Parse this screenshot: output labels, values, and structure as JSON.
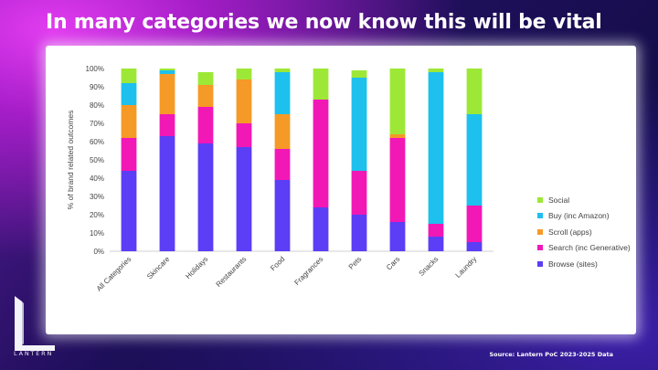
{
  "title": "In many categories we now know this will be vital",
  "source": "Source: Lantern PoC 2023-2025 Data",
  "logo": {
    "text": "LANTERN"
  },
  "colors": {
    "browse": "#5b3ef5",
    "search": "#f218b6",
    "scroll": "#f59a26",
    "buy": "#1ec0ee",
    "social": "#9de836"
  },
  "chart_data": {
    "type": "bar",
    "stacked": true,
    "ylabel": "% of brand related outcomes",
    "xlabel": "",
    "ylim": [
      0,
      100
    ],
    "y_ticks": [
      "0%",
      "10%",
      "20%",
      "30%",
      "40%",
      "50%",
      "60%",
      "70%",
      "80%",
      "90%",
      "100%"
    ],
    "legend_position": "right",
    "categories": [
      "All Categories",
      "Skincare",
      "Holidays",
      "Restaurants",
      "Food",
      "Fragrances",
      "Pets",
      "Cars",
      "Snacks",
      "Laundry"
    ],
    "series": [
      {
        "name": "Browse (sites)",
        "key": "browse",
        "values": [
          44,
          63,
          59,
          57,
          39,
          24,
          20,
          16,
          8,
          5
        ]
      },
      {
        "name": "Search (inc Generative)",
        "key": "search",
        "values": [
          18,
          12,
          20,
          13,
          17,
          59,
          24,
          46,
          7,
          20
        ]
      },
      {
        "name": "Scroll (apps)",
        "key": "scroll",
        "values": [
          18,
          22,
          12,
          24,
          19,
          0,
          0,
          2,
          0,
          0
        ]
      },
      {
        "name": "Buy (inc Amazon)",
        "key": "buy",
        "values": [
          12,
          2,
          0,
          0,
          23,
          0,
          51,
          0,
          83,
          50
        ]
      },
      {
        "name": "Social",
        "key": "social",
        "values": [
          8,
          1,
          7,
          6,
          2,
          17,
          4,
          36,
          2,
          25
        ]
      }
    ]
  }
}
